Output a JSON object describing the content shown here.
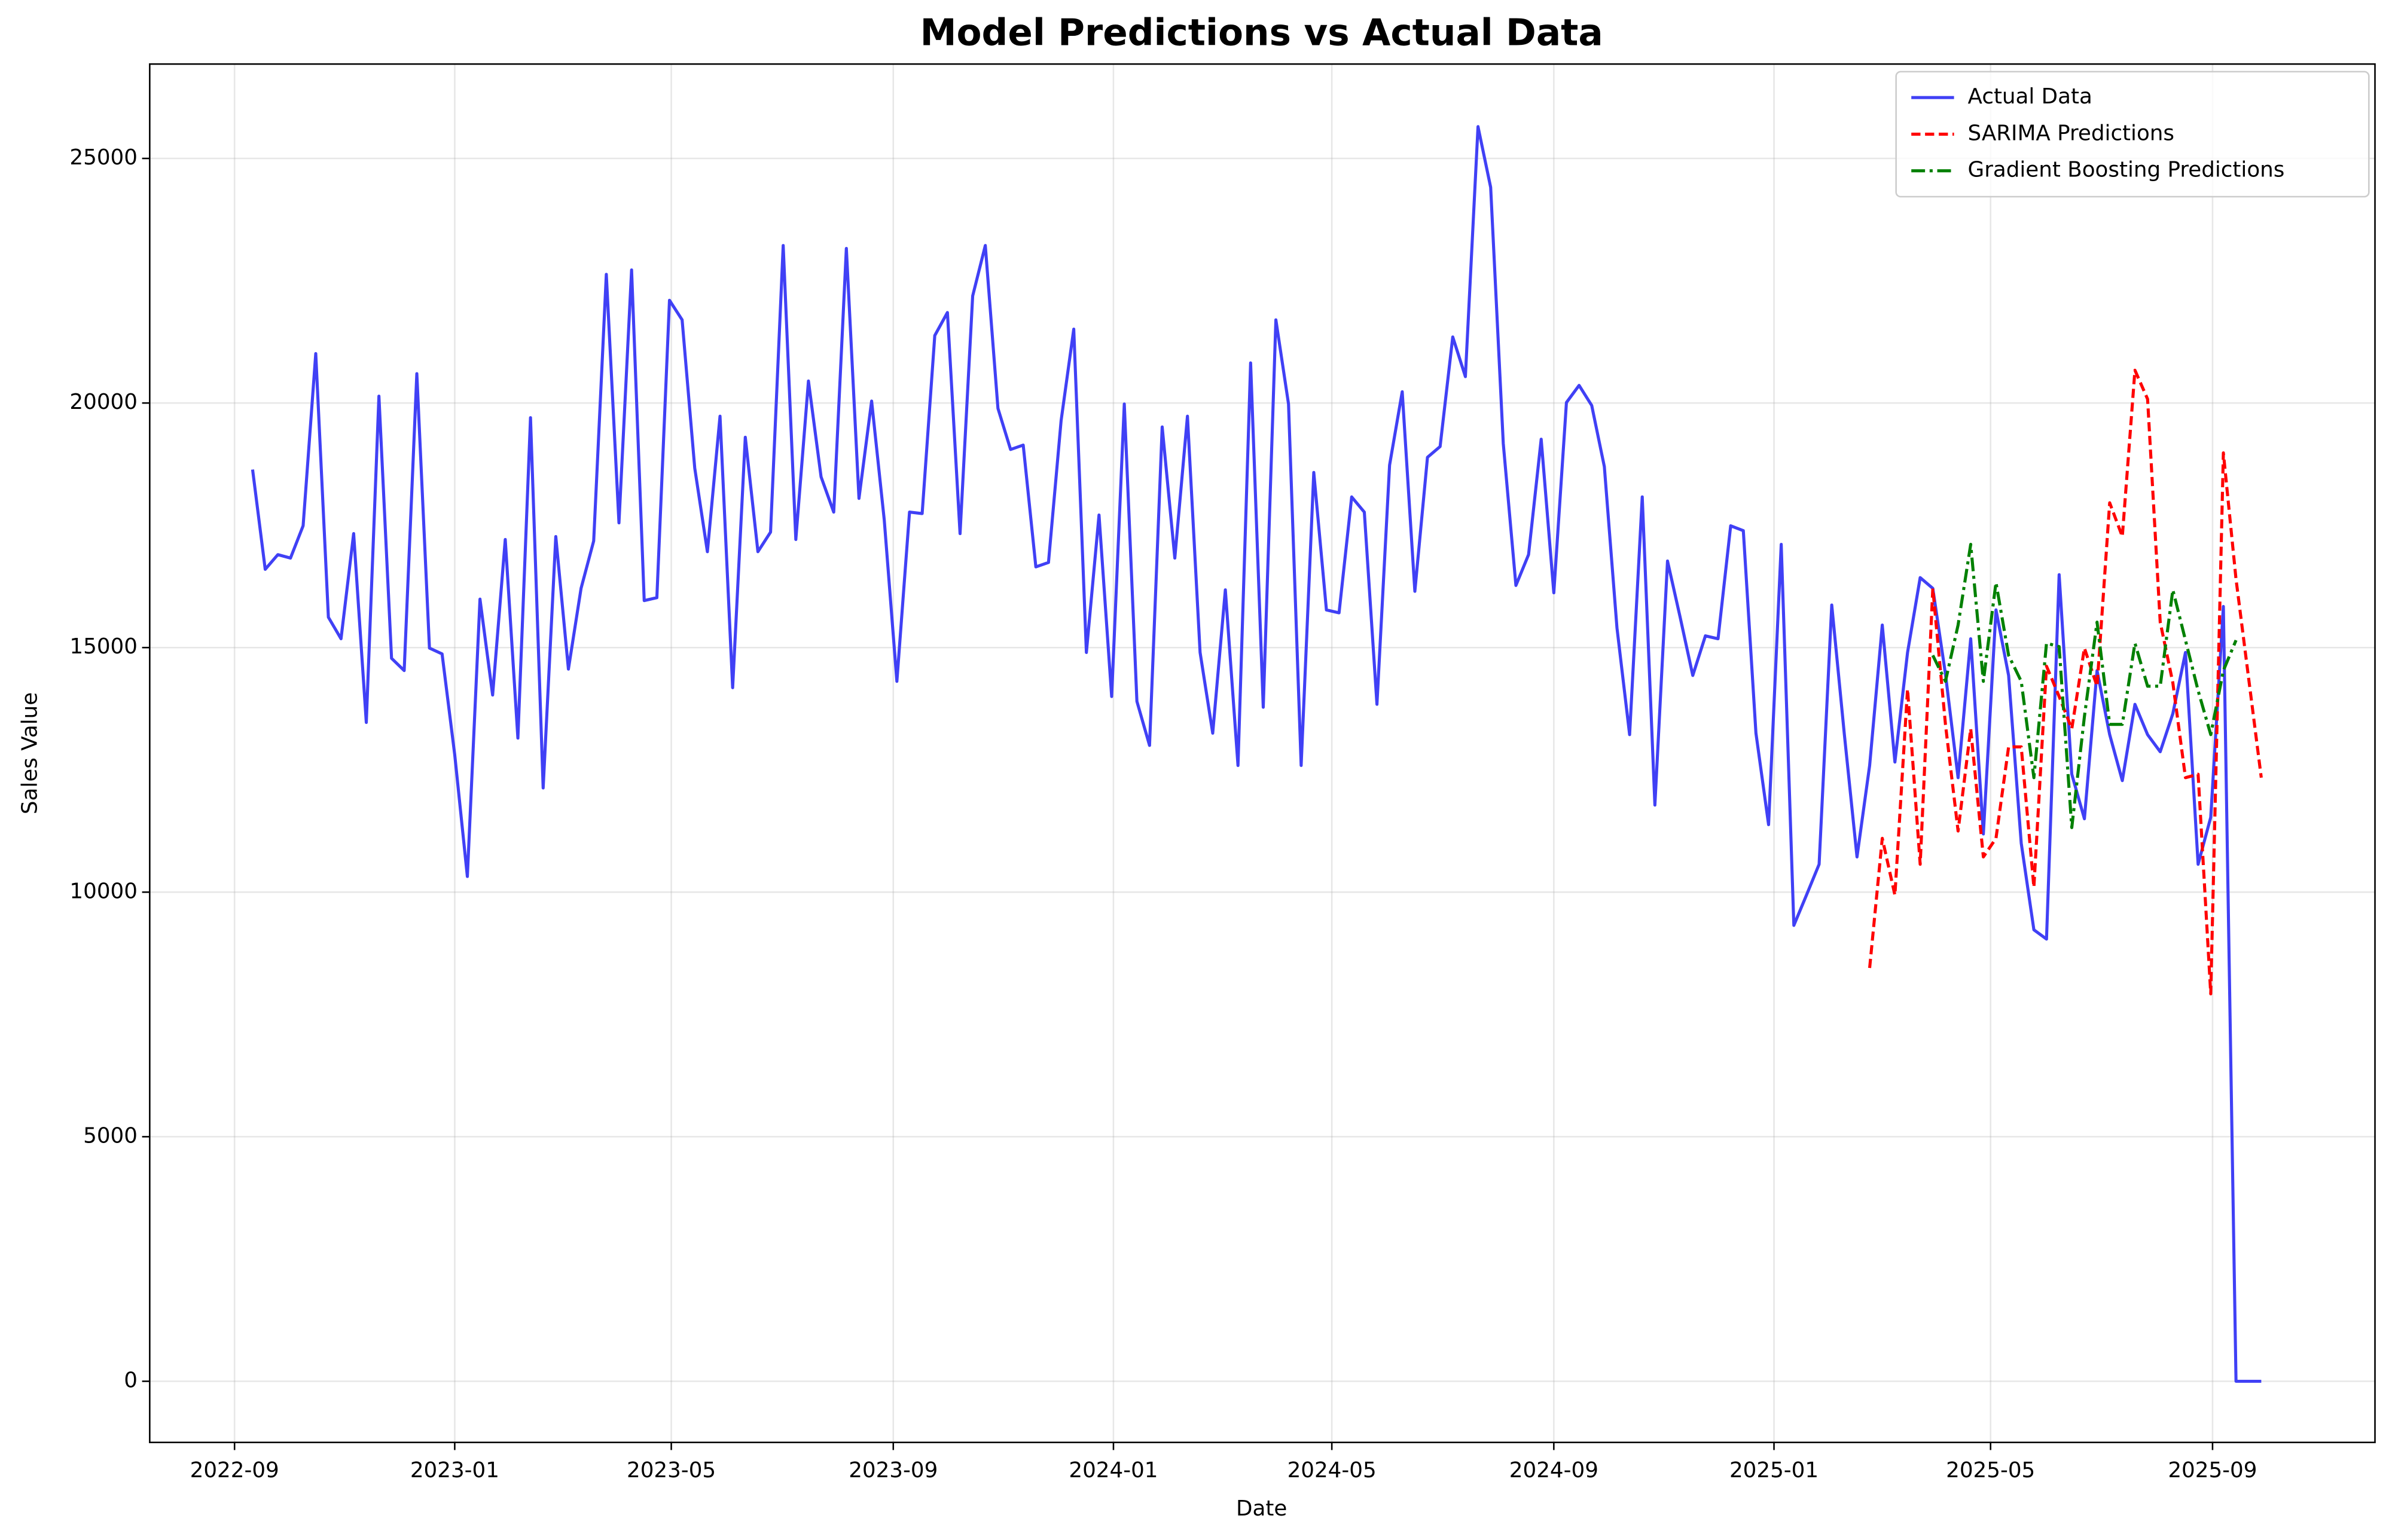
{
  "chart_data": {
    "type": "line",
    "title": "Model Predictions vs Actual Data",
    "x_label": "Date",
    "y_label": "Sales Value",
    "x": [
      "2022-09-11",
      "2022-09-18",
      "2022-09-25",
      "2022-10-02",
      "2022-10-09",
      "2022-10-16",
      "2022-10-23",
      "2022-10-30",
      "2022-11-06",
      "2022-11-13",
      "2022-11-20",
      "2022-11-27",
      "2022-12-04",
      "2022-12-11",
      "2022-12-18",
      "2022-12-25",
      "2023-01-01",
      "2023-01-08",
      "2023-01-15",
      "2023-01-22",
      "2023-01-29",
      "2023-02-05",
      "2023-02-12",
      "2023-02-19",
      "2023-02-26",
      "2023-03-05",
      "2023-03-12",
      "2023-03-19",
      "2023-03-26",
      "2023-04-02",
      "2023-04-09",
      "2023-04-16",
      "2023-04-23",
      "2023-04-30",
      "2023-05-07",
      "2023-05-14",
      "2023-05-21",
      "2023-05-28",
      "2023-06-04",
      "2023-06-11",
      "2023-06-18",
      "2023-06-25",
      "2023-07-02",
      "2023-07-09",
      "2023-07-16",
      "2023-07-23",
      "2023-07-30",
      "2023-08-06",
      "2023-08-13",
      "2023-08-20",
      "2023-08-27",
      "2023-09-03",
      "2023-09-10",
      "2023-09-17",
      "2023-09-24",
      "2023-10-01",
      "2023-10-08",
      "2023-10-15",
      "2023-10-22",
      "2023-10-29",
      "2023-11-05",
      "2023-11-12",
      "2023-11-19",
      "2023-11-26",
      "2023-12-03",
      "2023-12-10",
      "2023-12-17",
      "2023-12-24",
      "2023-12-31",
      "2024-01-07",
      "2024-01-14",
      "2024-01-21",
      "2024-01-28",
      "2024-02-04",
      "2024-02-11",
      "2024-02-18",
      "2024-02-25",
      "2024-03-03",
      "2024-03-10",
      "2024-03-17",
      "2024-03-24",
      "2024-03-31",
      "2024-04-07",
      "2024-04-14",
      "2024-04-21",
      "2024-04-28",
      "2024-05-05",
      "2024-05-12",
      "2024-05-19",
      "2024-05-26",
      "2024-06-02",
      "2024-06-09",
      "2024-06-16",
      "2024-06-23",
      "2024-06-30",
      "2024-07-07",
      "2024-07-14",
      "2024-07-21",
      "2024-07-28",
      "2024-08-04",
      "2024-08-11",
      "2024-08-18",
      "2024-08-25",
      "2024-09-01",
      "2024-09-08",
      "2024-09-15",
      "2024-09-22",
      "2024-09-29",
      "2024-10-06",
      "2024-10-13",
      "2024-10-20",
      "2024-10-27",
      "2024-11-03",
      "2024-11-10",
      "2024-11-17",
      "2024-11-24",
      "2024-12-01",
      "2024-12-08",
      "2024-12-15",
      "2024-12-22",
      "2024-12-29",
      "2025-01-05",
      "2025-01-12",
      "2025-01-19",
      "2025-01-26",
      "2025-02-02",
      "2025-02-09",
      "2025-02-16",
      "2025-02-23",
      "2025-03-02",
      "2025-03-09",
      "2025-03-16",
      "2025-03-23",
      "2025-03-30",
      "2025-04-06",
      "2025-04-13",
      "2025-04-20",
      "2025-04-27",
      "2025-05-04",
      "2025-05-11",
      "2025-05-18",
      "2025-05-25",
      "2025-06-01",
      "2025-06-08",
      "2025-06-15",
      "2025-06-22",
      "2025-06-29",
      "2025-07-06",
      "2025-07-13",
      "2025-07-20",
      "2025-07-27",
      "2025-08-03",
      "2025-08-10",
      "2025-08-17",
      "2025-08-24",
      "2025-08-31",
      "2025-09-07",
      "2025-09-14",
      "2025-09-21",
      "2025-09-28"
    ],
    "series": [
      {
        "name": "Actual Data",
        "color": "#4040f5",
        "linestyle": "solid",
        "values": [
          18640,
          16600,
          16900,
          16830,
          17490,
          21010,
          15620,
          15180,
          17330,
          13470,
          20140,
          14780,
          14530,
          20600,
          14990,
          14870,
          12810,
          10320,
          15990,
          14030,
          17210,
          13150,
          19700,
          12130,
          17270,
          14560,
          16210,
          17180,
          22630,
          17550,
          22720,
          15960,
          16020,
          22100,
          21700,
          18670,
          16960,
          19730,
          14180,
          19300,
          16960,
          17360,
          23220,
          17210,
          20450,
          18490,
          17770,
          23160,
          18050,
          20040,
          17610,
          14310,
          17770,
          17740,
          21380,
          21850,
          17330,
          22190,
          23220,
          19890,
          19050,
          19140,
          16650,
          16740,
          19640,
          21510,
          14900,
          17710,
          14000,
          19980,
          13900,
          13000,
          19510,
          16830,
          19730,
          14900,
          13250,
          16180,
          12590,
          20820,
          13780,
          21700,
          19980,
          12590,
          18580,
          15770,
          15710,
          18080,
          17770,
          13840,
          18730,
          20230,
          16150,
          18890,
          19110,
          21350,
          20540,
          25650,
          24410,
          19170,
          16270,
          16900,
          19260,
          16120,
          20010,
          20360,
          19950,
          18700,
          15400,
          13220,
          18080,
          11780,
          16770,
          15620,
          14430,
          15240,
          15180,
          17490,
          17390,
          13250,
          11380,
          17110,
          9320,
          9940,
          10570,
          15870,
          13220,
          10720,
          12590,
          15460,
          12660,
          14900,
          16430,
          16210,
          14460,
          12340,
          15180,
          11190,
          15770,
          14430,
          11000,
          9230,
          9040,
          16490,
          12410,
          11500,
          14530,
          13220,
          12280,
          13840,
          13220,
          12870,
          13650,
          14900,
          10570,
          11530,
          15840,
          0,
          0,
          0
        ]
      },
      {
        "name": "SARIMA Predictions",
        "color": "#ff0000",
        "linestyle": "dashed",
        "values": [
          null,
          null,
          null,
          null,
          null,
          null,
          null,
          null,
          null,
          null,
          null,
          null,
          null,
          null,
          null,
          null,
          null,
          null,
          null,
          null,
          null,
          null,
          null,
          null,
          null,
          null,
          null,
          null,
          null,
          null,
          null,
          null,
          null,
          null,
          null,
          null,
          null,
          null,
          null,
          null,
          null,
          null,
          null,
          null,
          null,
          null,
          null,
          null,
          null,
          null,
          null,
          null,
          null,
          null,
          null,
          null,
          null,
          null,
          null,
          null,
          null,
          null,
          null,
          null,
          null,
          null,
          null,
          null,
          null,
          null,
          null,
          null,
          null,
          null,
          null,
          null,
          null,
          null,
          null,
          null,
          null,
          null,
          null,
          null,
          null,
          null,
          null,
          null,
          null,
          null,
          null,
          null,
          null,
          null,
          null,
          null,
          null,
          null,
          null,
          null,
          null,
          null,
          null,
          null,
          null,
          null,
          null,
          null,
          null,
          null,
          null,
          null,
          null,
          null,
          null,
          null,
          null,
          null,
          null,
          null,
          null,
          null,
          null,
          null,
          null,
          null,
          null,
          null,
          8450,
          11100,
          9940,
          14150,
          10570,
          16210,
          13430,
          11250,
          13340,
          10720,
          11100,
          12970,
          12970,
          10100,
          14620,
          14000,
          13340,
          14990,
          14210,
          17960,
          17270,
          20670,
          20080,
          15520,
          14280,
          12340,
          12410,
          7920,
          18980,
          16400,
          14370,
          12340
        ]
      },
      {
        "name": "Gradient Boosting Predictions",
        "color": "#008000",
        "linestyle": "dashdot",
        "values": [
          null,
          null,
          null,
          null,
          null,
          null,
          null,
          null,
          null,
          null,
          null,
          null,
          null,
          null,
          null,
          null,
          null,
          null,
          null,
          null,
          null,
          null,
          null,
          null,
          null,
          null,
          null,
          null,
          null,
          null,
          null,
          null,
          null,
          null,
          null,
          null,
          null,
          null,
          null,
          null,
          null,
          null,
          null,
          null,
          null,
          null,
          null,
          null,
          null,
          null,
          null,
          null,
          null,
          null,
          null,
          null,
          null,
          null,
          null,
          null,
          null,
          null,
          null,
          null,
          null,
          null,
          null,
          null,
          null,
          null,
          null,
          null,
          null,
          null,
          null,
          null,
          null,
          null,
          null,
          null,
          null,
          null,
          null,
          null,
          null,
          null,
          null,
          null,
          null,
          null,
          null,
          null,
          null,
          null,
          null,
          null,
          null,
          null,
          null,
          null,
          null,
          null,
          null,
          null,
          null,
          null,
          null,
          null,
          null,
          null,
          null,
          null,
          null,
          null,
          null,
          null,
          null,
          null,
          null,
          null,
          null,
          null,
          null,
          null,
          null,
          null,
          null,
          null,
          null,
          null,
          null,
          null,
          null,
          14840,
          14310,
          15460,
          17110,
          14310,
          16330,
          14840,
          14310,
          12340,
          15090,
          15020,
          11320,
          13590,
          15520,
          13430,
          13430,
          15090,
          14210,
          14210,
          16180,
          15150,
          14120,
          13220,
          14530,
          15150,
          null,
          null
        ]
      }
    ],
    "xlim": [
      "2022-07-16",
      "2025-11-30"
    ],
    "xticks": [
      "2022-09",
      "2023-01",
      "2023-05",
      "2023-09",
      "2024-01",
      "2024-05",
      "2024-09",
      "2025-01",
      "2025-05",
      "2025-09"
    ],
    "ylim": [
      -1250,
      26930
    ],
    "yticks": [
      0,
      5000,
      10000,
      15000,
      20000,
      25000
    ],
    "grid": true,
    "legend": "upper right"
  }
}
